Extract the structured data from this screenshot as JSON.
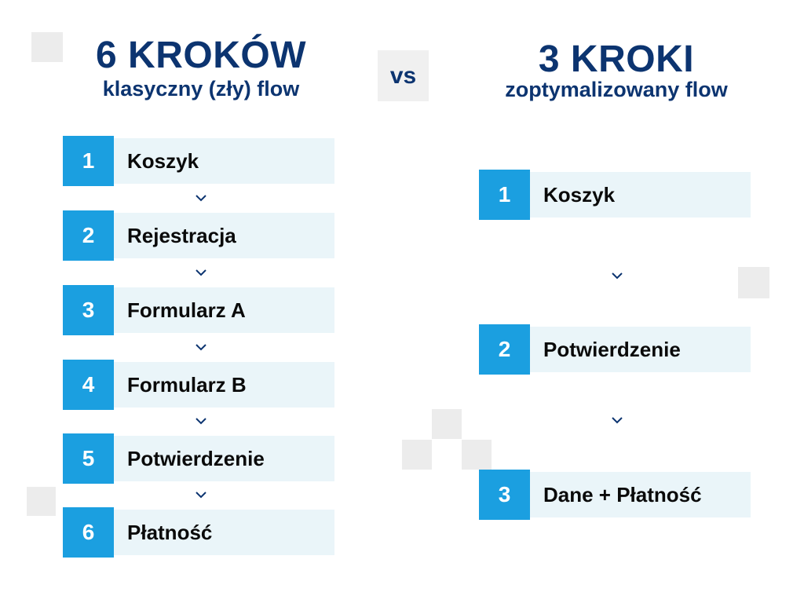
{
  "left": {
    "title": "6 KROKÓW",
    "subtitle": "klasyczny (zły) flow",
    "steps": [
      {
        "num": "1",
        "label": "Koszyk"
      },
      {
        "num": "2",
        "label": "Rejestracja"
      },
      {
        "num": "3",
        "label": "Formularz A"
      },
      {
        "num": "4",
        "label": "Formularz B"
      },
      {
        "num": "5",
        "label": "Potwierdzenie"
      },
      {
        "num": "6",
        "label": "Płatność"
      }
    ]
  },
  "vs_label": "vs",
  "right": {
    "title": "3 KROKI",
    "subtitle": "zoptymalizowany flow",
    "steps": [
      {
        "num": "1",
        "label": "Koszyk"
      },
      {
        "num": "2",
        "label": "Potwierdzenie"
      },
      {
        "num": "3",
        "label": "Dane + Płatność"
      }
    ]
  },
  "colors": {
    "title": "#0c3470",
    "step_number_bg": "#1b9fe0",
    "step_box_bg": "#eaf5f9",
    "chevron": "#0c3470"
  },
  "icons": [
    "chevron-down-icon"
  ]
}
